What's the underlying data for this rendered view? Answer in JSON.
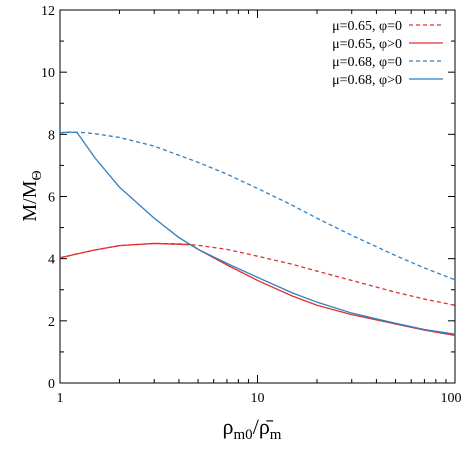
{
  "chart_data": {
    "type": "line",
    "title": "",
    "xlabel": "ρm0/ρ̄m",
    "ylabel": "M/MΘ",
    "x_scale": "log",
    "xlim": [
      1,
      100
    ],
    "ylim": [
      0,
      12
    ],
    "x_ticks": [
      {
        "value": 1,
        "label": "1"
      },
      {
        "value": 10,
        "label": "10"
      },
      {
        "value": 100,
        "label": "100"
      }
    ],
    "y_ticks": [
      {
        "value": 0,
        "label": "0"
      },
      {
        "value": 2,
        "label": "2"
      },
      {
        "value": 4,
        "label": "4"
      },
      {
        "value": 6,
        "label": "6"
      },
      {
        "value": 8,
        "label": "8"
      },
      {
        "value": 10,
        "label": "10"
      },
      {
        "value": 12,
        "label": "12"
      }
    ],
    "grid": false,
    "legend_position": "top-right",
    "series": [
      {
        "name": "μ=0.65, φ=0",
        "color": "#e03030",
        "dash": "dashed",
        "points": [
          [
            1,
            4.03
          ],
          [
            1.5,
            4.28
          ],
          [
            2,
            4.42
          ],
          [
            3,
            4.49
          ],
          [
            4,
            4.48
          ],
          [
            5,
            4.43
          ],
          [
            7,
            4.3
          ],
          [
            10,
            4.08
          ],
          [
            15,
            3.82
          ],
          [
            20,
            3.6
          ],
          [
            30,
            3.3
          ],
          [
            50,
            2.92
          ],
          [
            70,
            2.7
          ],
          [
            100,
            2.5
          ]
        ]
      },
      {
        "name": "μ=0.65, φ>0",
        "color": "#e03030",
        "dash": "solid",
        "points": [
          [
            1,
            4.03
          ],
          [
            1.5,
            4.28
          ],
          [
            2,
            4.42
          ],
          [
            3,
            4.49
          ],
          [
            4.6,
            4.45
          ],
          [
            5,
            4.3
          ],
          [
            7,
            3.8
          ],
          [
            10,
            3.3
          ],
          [
            15,
            2.8
          ],
          [
            20,
            2.5
          ],
          [
            30,
            2.2
          ],
          [
            50,
            1.9
          ],
          [
            70,
            1.7
          ],
          [
            100,
            1.53
          ]
        ]
      },
      {
        "name": "μ=0.68, φ=0",
        "color": "#2f7fc1",
        "dash": "dashed",
        "points": [
          [
            1,
            8.05
          ],
          [
            1.1,
            8.07
          ],
          [
            1.3,
            8.06
          ],
          [
            1.5,
            8.02
          ],
          [
            2,
            7.9
          ],
          [
            3,
            7.62
          ],
          [
            5,
            7.1
          ],
          [
            7,
            6.72
          ],
          [
            10,
            6.26
          ],
          [
            15,
            5.72
          ],
          [
            20,
            5.3
          ],
          [
            30,
            4.75
          ],
          [
            50,
            4.1
          ],
          [
            70,
            3.7
          ],
          [
            100,
            3.32
          ]
        ]
      },
      {
        "name": "μ=0.68, φ>0",
        "color": "#2f7fc1",
        "dash": "solid",
        "points": [
          [
            1,
            8.05
          ],
          [
            1.1,
            8.07
          ],
          [
            1.22,
            8.06
          ],
          [
            1.5,
            7.25
          ],
          [
            2,
            6.3
          ],
          [
            3,
            5.3
          ],
          [
            4,
            4.68
          ],
          [
            5,
            4.3
          ],
          [
            7,
            3.85
          ],
          [
            10,
            3.4
          ],
          [
            15,
            2.9
          ],
          [
            20,
            2.6
          ],
          [
            30,
            2.25
          ],
          [
            50,
            1.92
          ],
          [
            70,
            1.72
          ],
          [
            100,
            1.57
          ]
        ]
      }
    ]
  }
}
